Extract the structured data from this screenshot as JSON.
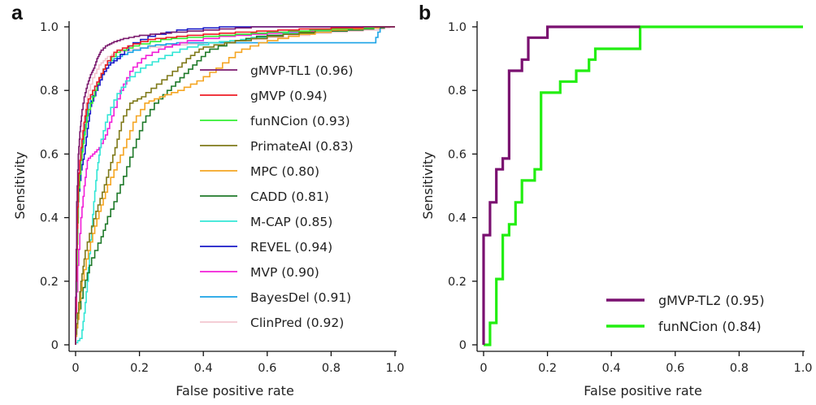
{
  "chart_data": [
    {
      "panel": "a",
      "type": "line",
      "title": "",
      "xlabel": "False positive rate",
      "ylabel": "Sensitivity",
      "xlim": [
        0,
        1.0
      ],
      "ylim": [
        0,
        1.0
      ],
      "xticks": [
        "0",
        "0.2",
        "0.4",
        "0.6",
        "0.8",
        "1.0"
      ],
      "yticks": [
        "0",
        "0.2",
        "0.4",
        "0.6",
        "0.8",
        "1.0"
      ],
      "grid": false,
      "legend_position": "center-right",
      "series": [
        {
          "name": "gMVP-TL1 (0.96)",
          "color": "#7b1a6e",
          "x": [
            0,
            0.005,
            0.01,
            0.015,
            0.02,
            0.03,
            0.04,
            0.05,
            0.06,
            0.07,
            0.08,
            0.1,
            0.12,
            0.15,
            0.2,
            0.3,
            0.45,
            0.6,
            1.0
          ],
          "y": [
            0,
            0.45,
            0.6,
            0.67,
            0.72,
            0.78,
            0.82,
            0.85,
            0.87,
            0.9,
            0.92,
            0.94,
            0.95,
            0.96,
            0.97,
            0.98,
            0.99,
            1.0,
            1.0
          ]
        },
        {
          "name": "gMVP (0.94)",
          "color": "#ee1c25",
          "x": [
            0,
            0.005,
            0.01,
            0.02,
            0.03,
            0.04,
            0.06,
            0.08,
            0.1,
            0.13,
            0.18,
            0.25,
            0.35,
            0.5,
            0.7,
            1.0
          ],
          "y": [
            0,
            0.3,
            0.5,
            0.62,
            0.7,
            0.76,
            0.8,
            0.84,
            0.88,
            0.92,
            0.94,
            0.96,
            0.97,
            0.98,
            0.99,
            1.0
          ]
        },
        {
          "name": "funNCion (0.93)",
          "color": "#33ee33",
          "x": [
            0,
            0.005,
            0.01,
            0.02,
            0.03,
            0.04,
            0.06,
            0.08,
            0.1,
            0.14,
            0.2,
            0.3,
            0.45,
            0.6,
            0.8,
            1.0
          ],
          "y": [
            0,
            0.25,
            0.45,
            0.58,
            0.66,
            0.72,
            0.78,
            0.84,
            0.88,
            0.92,
            0.94,
            0.96,
            0.97,
            0.98,
            0.99,
            1.0
          ]
        },
        {
          "name": "PrimateAI (0.83)",
          "color": "#7f7a1a",
          "x": [
            0,
            0.01,
            0.02,
            0.03,
            0.05,
            0.07,
            0.09,
            0.11,
            0.13,
            0.15,
            0.18,
            0.22,
            0.27,
            0.32,
            0.36,
            0.4,
            0.5,
            0.65,
            0.8,
            1.0
          ],
          "y": [
            0,
            0.1,
            0.2,
            0.27,
            0.35,
            0.42,
            0.48,
            0.55,
            0.62,
            0.7,
            0.76,
            0.78,
            0.82,
            0.86,
            0.9,
            0.93,
            0.95,
            0.97,
            0.99,
            1.0
          ]
        },
        {
          "name": "MPC (0.80)",
          "color": "#f5a623",
          "x": [
            0,
            0.01,
            0.02,
            0.04,
            0.06,
            0.08,
            0.1,
            0.13,
            0.16,
            0.19,
            0.23,
            0.28,
            0.34,
            0.4,
            0.46,
            0.52,
            0.6,
            0.7,
            0.85,
            1.0
          ],
          "y": [
            0,
            0.08,
            0.17,
            0.27,
            0.35,
            0.42,
            0.48,
            0.55,
            0.62,
            0.7,
            0.76,
            0.78,
            0.8,
            0.83,
            0.87,
            0.92,
            0.95,
            0.97,
            0.99,
            1.0
          ]
        },
        {
          "name": "CADD (0.81)",
          "color": "#1f7a2a",
          "x": [
            0,
            0.01,
            0.03,
            0.05,
            0.08,
            0.1,
            0.13,
            0.16,
            0.19,
            0.22,
            0.26,
            0.3,
            0.34,
            0.38,
            0.42,
            0.5,
            0.6,
            0.75,
            0.9,
            1.0
          ],
          "y": [
            0,
            0.08,
            0.18,
            0.25,
            0.32,
            0.38,
            0.45,
            0.53,
            0.62,
            0.7,
            0.76,
            0.8,
            0.84,
            0.88,
            0.92,
            0.95,
            0.97,
            0.98,
            0.99,
            1.0
          ]
        },
        {
          "name": "M-CAP (0.85)",
          "color": "#33e6d6",
          "x": [
            0,
            0.02,
            0.03,
            0.04,
            0.05,
            0.06,
            0.07,
            0.08,
            0.1,
            0.13,
            0.17,
            0.22,
            0.28,
            0.35,
            0.45,
            0.55,
            0.7,
            0.85,
            1.0
          ],
          "y": [
            0,
            0.02,
            0.1,
            0.2,
            0.33,
            0.45,
            0.55,
            0.62,
            0.7,
            0.77,
            0.83,
            0.87,
            0.9,
            0.93,
            0.95,
            0.96,
            0.98,
            0.99,
            1.0
          ]
        },
        {
          "name": "REVEL (0.94)",
          "color": "#1a1ac8",
          "x": [
            0,
            0.005,
            0.01,
            0.02,
            0.03,
            0.04,
            0.05,
            0.07,
            0.09,
            0.11,
            0.14,
            0.18,
            0.25,
            0.35,
            0.5,
            0.7,
            1.0
          ],
          "y": [
            0,
            0.3,
            0.45,
            0.55,
            0.6,
            0.68,
            0.75,
            0.8,
            0.85,
            0.88,
            0.9,
            0.94,
            0.97,
            0.99,
            1.0,
            1.0,
            1.0
          ]
        },
        {
          "name": "MVP (0.90)",
          "color": "#f21fd8",
          "x": [
            0,
            0.01,
            0.02,
            0.03,
            0.04,
            0.06,
            0.08,
            0.1,
            0.12,
            0.15,
            0.18,
            0.22,
            0.28,
            0.35,
            0.5,
            0.65,
            0.8,
            1.0
          ],
          "y": [
            0,
            0.25,
            0.4,
            0.5,
            0.58,
            0.6,
            0.62,
            0.66,
            0.72,
            0.8,
            0.86,
            0.9,
            0.93,
            0.95,
            0.97,
            0.98,
            0.99,
            1.0
          ]
        },
        {
          "name": "BayesDel (0.91)",
          "color": "#1aa3e6",
          "x": [
            0,
            0.005,
            0.01,
            0.02,
            0.03,
            0.04,
            0.06,
            0.08,
            0.1,
            0.13,
            0.18,
            0.25,
            0.35,
            0.5,
            0.7,
            0.85,
            0.94,
            0.96,
            1.0
          ],
          "y": [
            0,
            0.35,
            0.5,
            0.6,
            0.67,
            0.74,
            0.8,
            0.84,
            0.88,
            0.9,
            0.92,
            0.94,
            0.95,
            0.95,
            0.95,
            0.95,
            0.95,
            1.0,
            1.0
          ]
        },
        {
          "name": "ClinPred (0.92)",
          "color": "#f2c6cf",
          "x": [
            0,
            0.005,
            0.01,
            0.02,
            0.03,
            0.04,
            0.06,
            0.08,
            0.1,
            0.14,
            0.2,
            0.3,
            0.45,
            0.6,
            0.8,
            0.95,
            1.0
          ],
          "y": [
            0,
            0.4,
            0.55,
            0.65,
            0.72,
            0.78,
            0.84,
            0.88,
            0.9,
            0.92,
            0.93,
            0.94,
            0.95,
            0.96,
            0.98,
            0.99,
            1.0
          ]
        }
      ]
    },
    {
      "panel": "b",
      "type": "line",
      "title": "",
      "xlabel": "False positive rate",
      "ylabel": "Sensitivity",
      "xlim": [
        0,
        1.0
      ],
      "ylim": [
        0,
        1.0
      ],
      "xticks": [
        "0",
        "0.2",
        "0.4",
        "0.6",
        "0.8",
        "1.0"
      ],
      "yticks": [
        "0",
        "0.2",
        "0.4",
        "0.6",
        "0.8",
        "1.0"
      ],
      "grid": false,
      "legend_position": "bottom-right",
      "series": [
        {
          "name": "gMVP-TL2 (0.95)",
          "color": "#7a1070",
          "x": [
            0,
            0,
            0.02,
            0.02,
            0.04,
            0.04,
            0.06,
            0.06,
            0.08,
            0.08,
            0.12,
            0.12,
            0.14,
            0.14,
            0.2,
            0.2,
            0.49
          ],
          "y": [
            0,
            0.345,
            0.345,
            0.448,
            0.448,
            0.552,
            0.552,
            0.586,
            0.586,
            0.862,
            0.862,
            0.897,
            0.897,
            0.966,
            0.966,
            1.0,
            1.0
          ]
        },
        {
          "name": "funNCion (0.84)",
          "color": "#22ee11",
          "x": [
            0,
            0.02,
            0.02,
            0.04,
            0.04,
            0.06,
            0.06,
            0.08,
            0.08,
            0.1,
            0.1,
            0.12,
            0.12,
            0.16,
            0.16,
            0.18,
            0.18,
            0.24,
            0.24,
            0.29,
            0.29,
            0.33,
            0.33,
            0.35,
            0.35,
            0.49,
            0.49,
            1.0
          ],
          "y": [
            0,
            0,
            0.069,
            0.069,
            0.207,
            0.207,
            0.345,
            0.345,
            0.379,
            0.379,
            0.448,
            0.448,
            0.517,
            0.517,
            0.552,
            0.552,
            0.793,
            0.793,
            0.828,
            0.828,
            0.862,
            0.862,
            0.897,
            0.897,
            0.931,
            0.931,
            1.0,
            1.0
          ]
        }
      ]
    }
  ],
  "panels": {
    "a": {
      "label": "a"
    },
    "b": {
      "label": "b"
    }
  }
}
